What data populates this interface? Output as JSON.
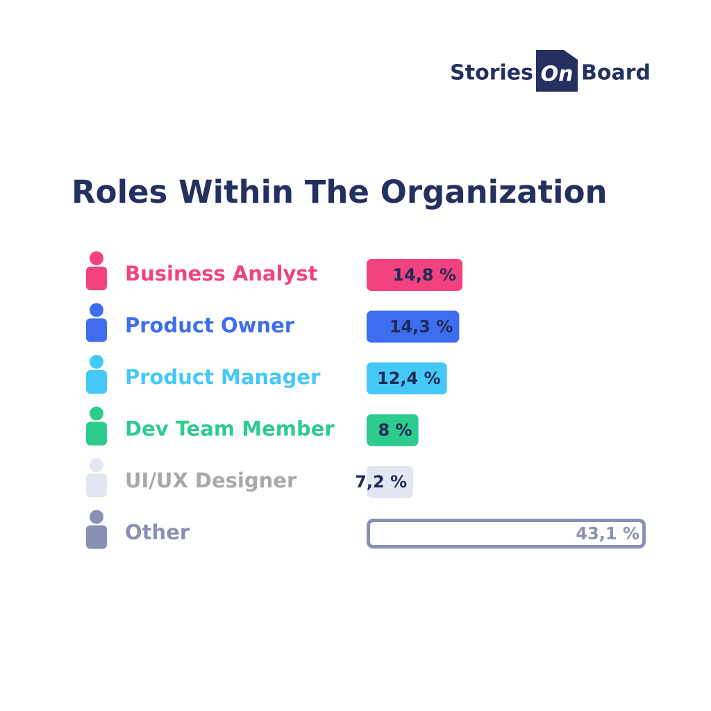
{
  "logo": {
    "left": "Stories",
    "box": "On",
    "right": "Board"
  },
  "chart_data": {
    "type": "bar",
    "orientation": "horizontal",
    "title": "Roles Within The Organization",
    "categories": [
      "Business Analyst",
      "Product Owner",
      "Product Manager",
      "Dev Team Member",
      "UI/UX Designer",
      "Other"
    ],
    "values": [
      14.8,
      14.3,
      12.4,
      8,
      7.2,
      43.1
    ],
    "value_labels": [
      "14,8 %",
      "14,3 %",
      "12,4 %",
      "8 %",
      "7,2 %",
      "43,1 %"
    ],
    "colors": [
      "#f2427f",
      "#3f6df0",
      "#44c9f7",
      "#2ecb8e",
      "#e3e7f2",
      "#8891b2"
    ],
    "label_colors": [
      "#f2427f",
      "#3f6df0",
      "#44c9f7",
      "#2ecb8e",
      "#a9a9ad",
      "#8891b2"
    ],
    "bar_styles": [
      "fill",
      "fill",
      "fill",
      "fill",
      "fill",
      "outline"
    ]
  }
}
